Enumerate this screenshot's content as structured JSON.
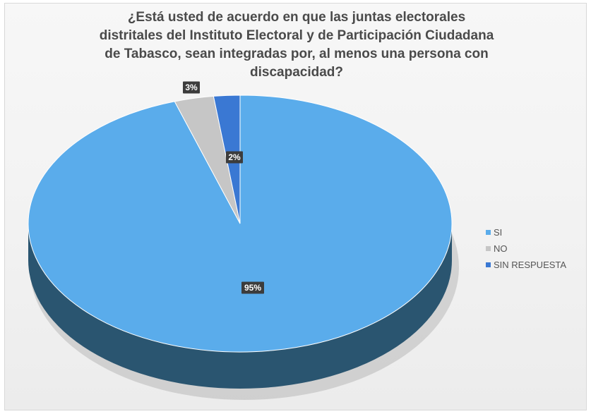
{
  "chart_data": {
    "type": "pie",
    "title_lines": [
      "¿Está usted de acuerdo en que las juntas electorales",
      "distritales del Instituto Electoral y de Participación Ciudadana",
      "de Tabasco, sean integradas por, al menos una persona con",
      "discapacidad?"
    ],
    "slices": [
      {
        "label": "SI",
        "value": 95,
        "display": "95%",
        "color": "#5aaceb",
        "side_color": "#2a5570"
      },
      {
        "label": "NO",
        "value": 3,
        "display": "3%",
        "color": "#c6c6c6",
        "side_color": "#8c8c8c"
      },
      {
        "label": "SIN RESPUESTA",
        "value": 2,
        "display": "2%",
        "color": "#3a78d3",
        "side_color": "#224a85"
      }
    ],
    "legend_position": "right"
  }
}
